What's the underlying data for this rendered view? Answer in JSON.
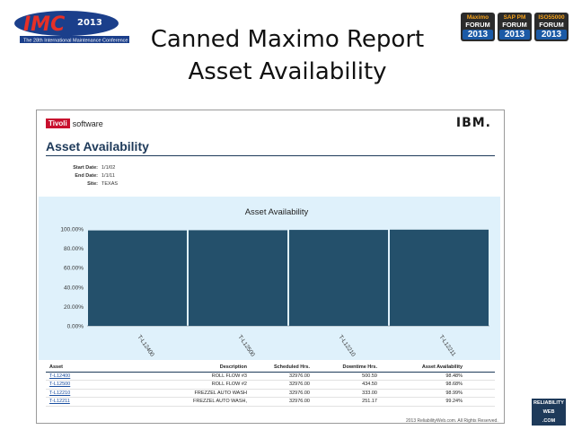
{
  "slide": {
    "title_line1": "Canned Maximo Report",
    "title_line2": "Asset Availability",
    "copyright": "2013 ReliabilityWeb.com. All Rights Reserved.",
    "reliability_logo": [
      "RELIABILITY",
      "WEB",
      ".COM"
    ]
  },
  "imc_logo": {
    "text": "IMC",
    "year": "2013",
    "tagline": "The 28th International Maintenance Conference"
  },
  "badges": [
    {
      "top": "Maximo",
      "mid": "FORUM",
      "year": "2013"
    },
    {
      "top": "SAP PM",
      "mid": "FORUM",
      "year": "2013"
    },
    {
      "top": "ISO55000",
      "mid": "FORUM",
      "year": "2013"
    }
  ],
  "report": {
    "vendor": "Tivoli",
    "vendor_suffix": "software",
    "brand": "IBM.",
    "title": "Asset Availability",
    "params": [
      {
        "label": "Start Date:",
        "value": "1/1/02"
      },
      {
        "label": "End Date:",
        "value": "1/1/11"
      },
      {
        "label": "Site:",
        "value": "TEXAS"
      }
    ]
  },
  "chart_data": {
    "type": "bar",
    "title": "Asset Availability",
    "categories": [
      "T-L12400",
      "T-L12500",
      "T-L12210",
      "T-L12211"
    ],
    "values": [
      98.48,
      98.68,
      98.99,
      99.24
    ],
    "ylim": [
      0,
      100
    ],
    "yticks": [
      "0.00%",
      "20.00%",
      "40.00%",
      "60.00%",
      "80.00%",
      "100.00%"
    ],
    "bar_color": "#24506b",
    "background": "#dff1fb",
    "grid": false,
    "legend": "none"
  },
  "table": {
    "headers": [
      "Asset",
      "Description",
      "Scheduled Hrs.",
      "Downtime Hrs.",
      "Asset Availability"
    ],
    "rows": [
      [
        "T-L12400",
        "ROLL FLOW #3",
        "32976.00",
        "500.59",
        "98.48%"
      ],
      [
        "T-L12500",
        "ROLL FLOW #2",
        "32976.00",
        "434.50",
        "98.68%"
      ],
      [
        "T-L12210",
        "FREZZEL AUTO WASH",
        "32976.00",
        "333.00",
        "98.99%"
      ],
      [
        "T-L12211",
        "FREZZEL AUTO WASH,",
        "32976.00",
        "251.17",
        "99.24%"
      ]
    ]
  }
}
